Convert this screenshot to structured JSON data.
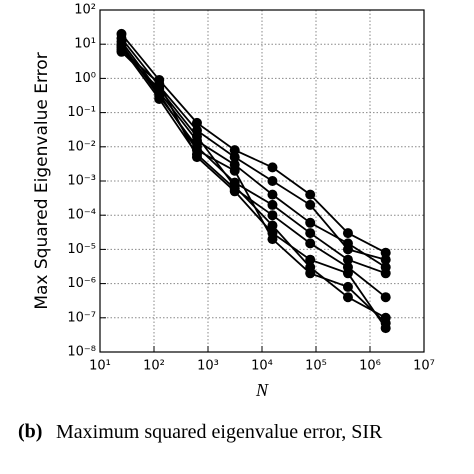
{
  "chart_data": {
    "type": "line",
    "log_x": true,
    "log_y": true,
    "grid": true,
    "marker": "circle",
    "y_label": "Max Squared Eigenvalue Error",
    "x_label": "N",
    "x": [
      25,
      125,
      625,
      3125,
      15625,
      78125,
      390625,
      1953125
    ],
    "xlim": [
      10,
      10000000
    ],
    "xticks": [
      {
        "value": 10,
        "label": "10¹"
      },
      {
        "value": 100,
        "label": "10²"
      },
      {
        "value": 1000,
        "label": "10³"
      },
      {
        "value": 10000,
        "label": "10⁴"
      },
      {
        "value": 100000,
        "label": "10⁵"
      },
      {
        "value": 1000000,
        "label": "10⁶"
      },
      {
        "value": 10000000,
        "label": "10⁷"
      }
    ],
    "ylim": [
      1e-08,
      100
    ],
    "yticks": [
      {
        "value": 1e-08,
        "label": "10⁻⁸"
      },
      {
        "value": 1e-07,
        "label": "10⁻⁷"
      },
      {
        "value": 1e-06,
        "label": "10⁻⁶"
      },
      {
        "value": 1e-05,
        "label": "10⁻⁵"
      },
      {
        "value": 0.0001,
        "label": "10⁻⁴"
      },
      {
        "value": 0.001,
        "label": "10⁻³"
      },
      {
        "value": 0.01,
        "label": "10⁻²"
      },
      {
        "value": 0.1,
        "label": "10⁻¹"
      },
      {
        "value": 1,
        "label": "10⁰"
      },
      {
        "value": 10,
        "label": "10¹"
      },
      {
        "value": 100,
        "label": "10²"
      }
    ],
    "series": [
      {
        "color": "#000000",
        "values": [
          20,
          0.9,
          0.05,
          0.008,
          0.0025,
          0.0004,
          3e-05,
          8e-06
        ]
      },
      {
        "color": "#000000",
        "values": [
          15,
          0.6,
          0.03,
          0.005,
          0.001,
          0.0002,
          1e-05,
          5e-06
        ]
      },
      {
        "color": "#000000",
        "values": [
          12,
          0.4,
          0.015,
          0.003,
          0.0004,
          6e-05,
          1.5e-05,
          3e-06
        ]
      },
      {
        "color": "#000000",
        "values": [
          10,
          0.3,
          0.01,
          0.0009,
          0.0002,
          3e-05,
          5e-06,
          2e-06
        ]
      },
      {
        "color": "#000000",
        "values": [
          8,
          0.25,
          0.006,
          0.0006,
          0.0001,
          1.5e-05,
          3e-06,
          4e-07
        ]
      },
      {
        "color": "#000000",
        "values": [
          6,
          0.5,
          0.02,
          0.0007,
          5e-05,
          3e-06,
          4e-07,
          1e-07
        ]
      },
      {
        "color": "#000000",
        "values": [
          9,
          0.35,
          0.008,
          0.002,
          2e-05,
          2e-06,
          8e-07,
          7e-08
        ]
      },
      {
        "color": "#000000",
        "values": [
          7,
          0.7,
          0.005,
          0.0005,
          3e-05,
          5e-06,
          2e-06,
          5e-08
        ]
      }
    ]
  },
  "caption": {
    "label": "(b)",
    "text": "Maximum squared eigenvalue error, SIR"
  }
}
